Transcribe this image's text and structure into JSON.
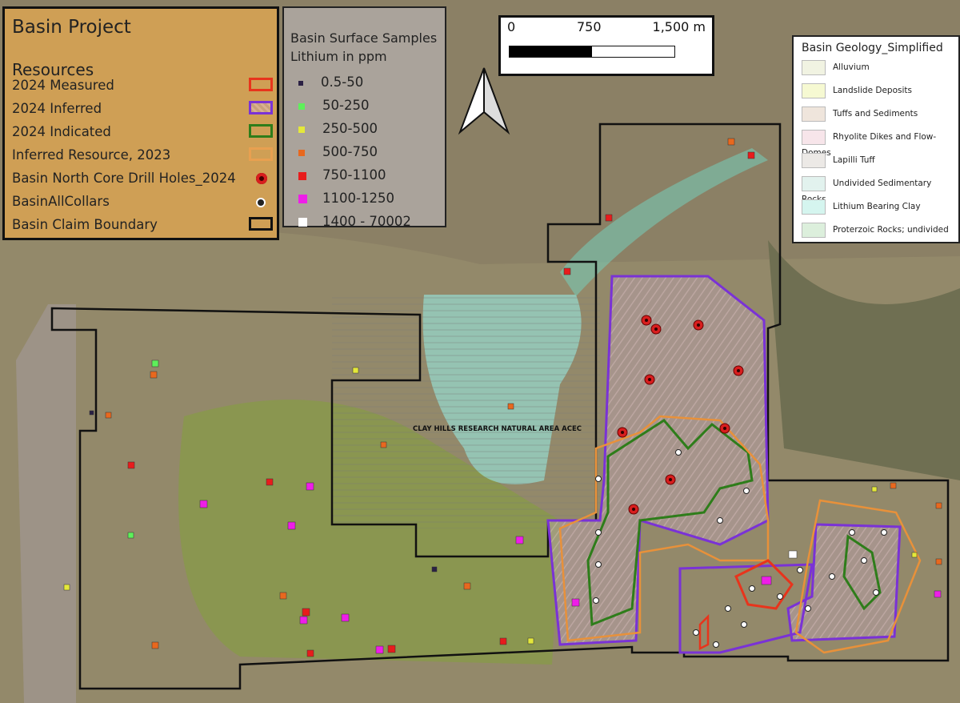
{
  "resources_legend": {
    "title": "Basin Project",
    "heading": "Resources",
    "items": [
      {
        "label": "2024 Measured",
        "symbol": "outline",
        "color": "#e8341c"
      },
      {
        "label": "2024 Inferred",
        "symbol": "hatched-outline",
        "color": "#7a32d6"
      },
      {
        "label": "2024 Indicated",
        "symbol": "outline",
        "color": "#2e7d1a"
      },
      {
        "label": "Inferred Resource, 2023",
        "symbol": "outline",
        "color": "#e8913a"
      },
      {
        "label": "Basin North Core Drill Holes_2024",
        "symbol": "red-target-dot",
        "color": "#d81e1e"
      },
      {
        "label": "BasinAllCollars",
        "symbol": "white-target-dot",
        "color": "#ffffff"
      },
      {
        "label": "Basin Claim Boundary",
        "symbol": "outline",
        "color": "#111111"
      }
    ]
  },
  "lithium_legend": {
    "title_line1": "Basin Surface Samples",
    "title_line2": "Lithium in ppm",
    "classes": [
      {
        "label": "0.5-50",
        "color": "#2b2144"
      },
      {
        "label": "50-250",
        "color": "#5ef05a"
      },
      {
        "label": "250-500",
        "color": "#e4e83a"
      },
      {
        "label": "500-750",
        "color": "#e8681e"
      },
      {
        "label": "750-1100",
        "color": "#e81c1c"
      },
      {
        "label": "1100-1250",
        "color": "#ee1ee8"
      },
      {
        "label": "1400 - 70002",
        "color": "#ffffff"
      }
    ]
  },
  "scale_bar": {
    "labels": [
      "0",
      "750",
      "1,500 m"
    ]
  },
  "north_arrow": {
    "icon": "north-arrow-icon"
  },
  "geology_legend": {
    "title": "Basin Geology_Simplified",
    "units": [
      {
        "label": "Alluvium",
        "color": "#f1f3e2"
      },
      {
        "label": "Landslide Deposits",
        "color": "#f6f9d2"
      },
      {
        "label": "Tuffs and Sediments",
        "color": "#efe5dc"
      },
      {
        "label": "Rhyolite Dikes and Flow-Domes",
        "color": "#f7e5ea"
      },
      {
        "label": "Lapilli Tuff",
        "color": "#ece9e6"
      },
      {
        "label": "Undivided Sedimentary Rocks",
        "color": "#e2f2ee"
      },
      {
        "label": "Lithium Bearing Clay",
        "color": "#d5f5ef"
      },
      {
        "label": "Proterzoic Rocks; undivided",
        "color": "#dcefdc"
      }
    ]
  },
  "map_labels": {
    "acec": "CLAY HILLS RESEARCH NATURAL AREA ACEC"
  }
}
